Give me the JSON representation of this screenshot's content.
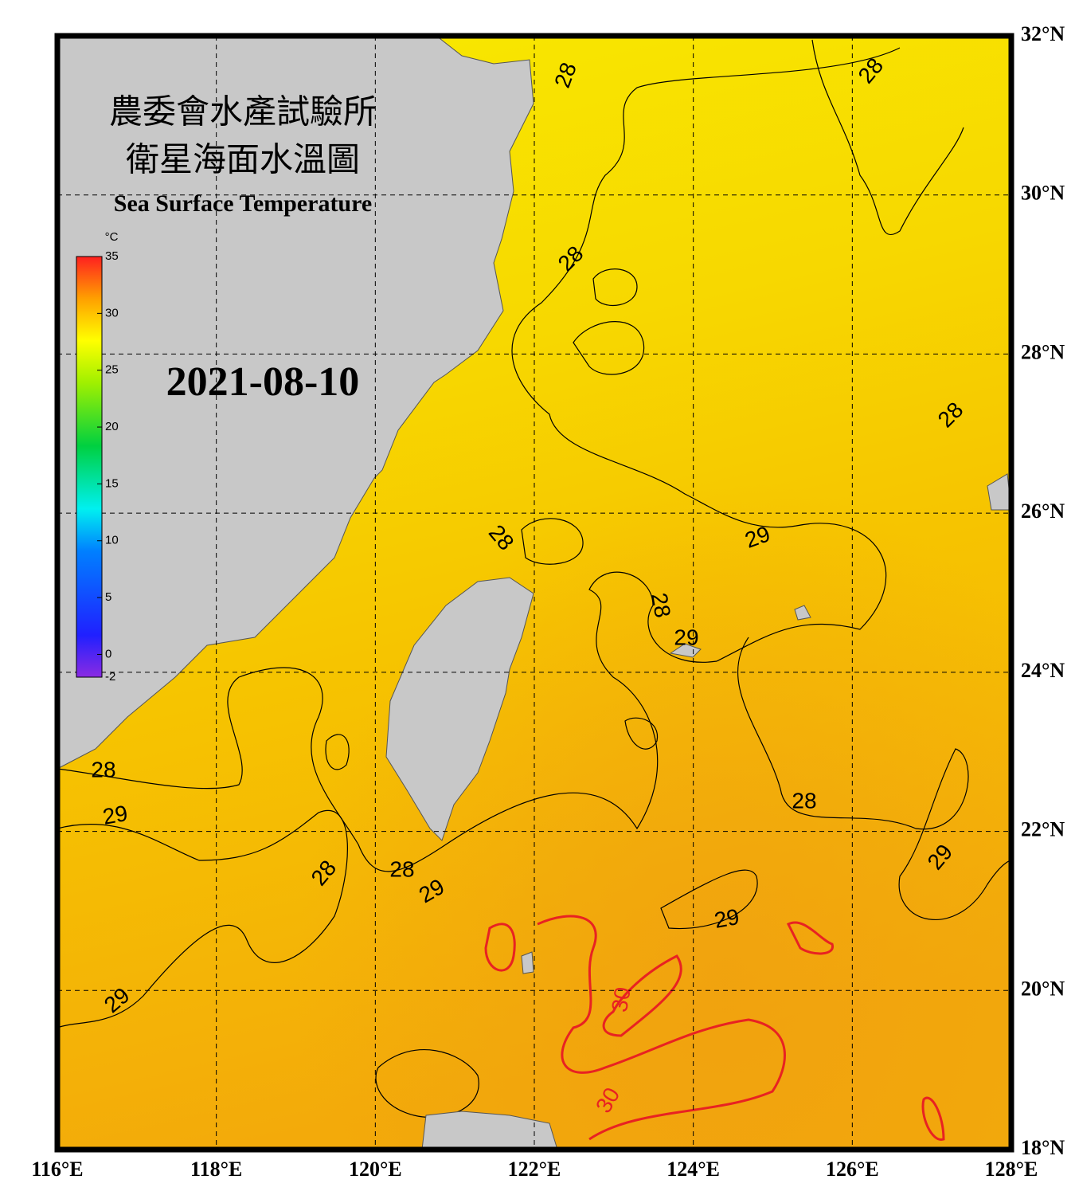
{
  "title": [
    "農委會水產試驗所",
    "衛星海面水溫圖"
  ],
  "subtitle": "Sea Surface Temperature",
  "date": "2021-08-10",
  "map": {
    "xlim": [
      116,
      128
    ],
    "ylim": [
      18,
      32
    ],
    "xticks": [
      {
        "value": 116,
        "label": "116°E"
      },
      {
        "value": 118,
        "label": "118°E"
      },
      {
        "value": 120,
        "label": "120°E"
      },
      {
        "value": 122,
        "label": "122°E"
      },
      {
        "value": 124,
        "label": "124°E"
      },
      {
        "value": 126,
        "label": "126°E"
      },
      {
        "value": 128,
        "label": "128°E"
      }
    ],
    "yticks": [
      {
        "value": 18,
        "label": "18°N"
      },
      {
        "value": 20,
        "label": "20°N"
      },
      {
        "value": 22,
        "label": "22°N"
      },
      {
        "value": 24,
        "label": "24°N"
      },
      {
        "value": 26,
        "label": "26°N"
      },
      {
        "value": 28,
        "label": "28°N"
      },
      {
        "value": 30,
        "label": "30°N"
      },
      {
        "value": 32,
        "label": "32°N"
      }
    ],
    "grid": true
  },
  "colorbar": {
    "unit": "°C",
    "range": [
      -2,
      35
    ],
    "ticks": [
      35,
      30,
      25,
      20,
      15,
      10,
      5,
      0,
      -2
    ]
  },
  "contour_labels": [
    {
      "value": 28,
      "color": "#000000"
    },
    {
      "value": 28,
      "color": "#000000"
    },
    {
      "value": 28,
      "color": "#000000"
    },
    {
      "value": 28,
      "color": "#000000"
    },
    {
      "value": 28,
      "color": "#000000"
    },
    {
      "value": 29,
      "color": "#000000"
    },
    {
      "value": 28,
      "color": "#000000"
    },
    {
      "value": 29,
      "color": "#000000"
    },
    {
      "value": 28,
      "color": "#000000"
    },
    {
      "value": 29,
      "color": "#000000"
    },
    {
      "value": 28,
      "color": "#000000"
    },
    {
      "value": 28,
      "color": "#000000"
    },
    {
      "value": 29,
      "color": "#000000"
    },
    {
      "value": 28,
      "color": "#000000"
    },
    {
      "value": 29,
      "color": "#000000"
    },
    {
      "value": 29,
      "color": "#000000"
    },
    {
      "value": 29,
      "color": "#000000"
    },
    {
      "value": 30,
      "color": "#e82222"
    },
    {
      "value": 30,
      "color": "#e82222"
    }
  ]
}
